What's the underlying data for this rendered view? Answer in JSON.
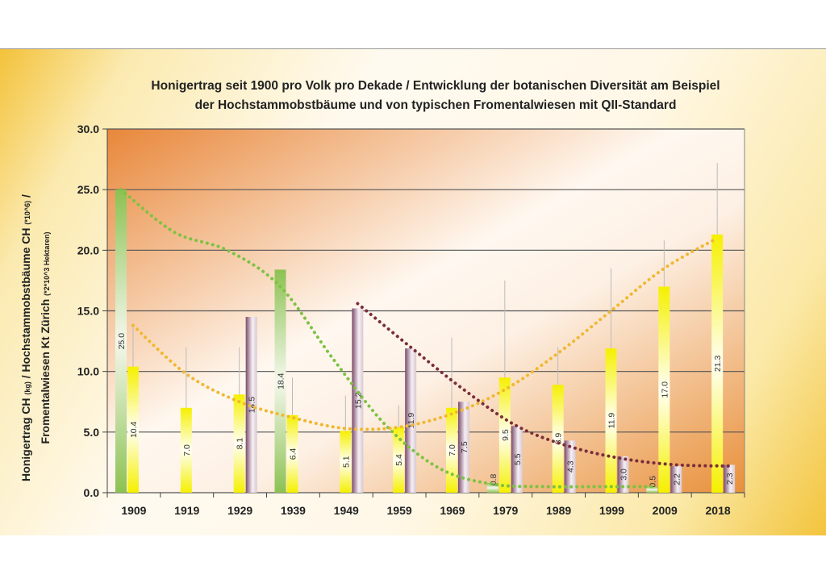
{
  "chart_data": {
    "type": "bar",
    "title_line1": "Honigertrag seit 1900 pro Volk pro Dekade / Entwicklung der botanischen Diversität am Beispiel",
    "title_line2": "der Hochstammobstbäume und von typischen Fromentalwiesen mit QII-Standard",
    "ylabel_line1": "Honigertrag CH",
    "ylabel_unit1": "(kg)",
    "ylabel_mid": "/ Hochstammobstbäume CH",
    "ylabel_unit2": "(*10^6)",
    "ylabel_end": "/",
    "ylabel_line2": "Fromentalwiesen Kt Zürich",
    "ylabel_unit3": "(*2*10^3 Hektaren)",
    "ylim": [
      0,
      30
    ],
    "yticks": [
      "0.0",
      "5.0",
      "10.0",
      "15.0",
      "20.0",
      "25.0",
      "30.0"
    ],
    "grid": true,
    "categories": [
      "1909",
      "1919",
      "1929",
      "1939",
      "1949",
      "1959",
      "1969",
      "1979",
      "1989",
      "1999",
      "2009",
      "2018"
    ],
    "series": [
      {
        "key": "green",
        "color": "#8cc152",
        "values": [
          25.0,
          null,
          null,
          18.4,
          null,
          null,
          null,
          0.8,
          null,
          null,
          0.5,
          null
        ],
        "trend": [
          25,
          21.5,
          20,
          17,
          11,
          5.5,
          2,
          0.7,
          0.5,
          0.5,
          0.5,
          null
        ]
      },
      {
        "key": "yellow",
        "color": "#f5f000",
        "values": [
          10.4,
          7.0,
          8.1,
          6.4,
          5.1,
          5.4,
          7.0,
          9.5,
          8.9,
          11.9,
          17.0,
          21.3
        ],
        "error_upper": [
          13.8,
          12.0,
          12.0,
          9.5,
          8.0,
          7.2,
          12.8,
          17.5,
          12.0,
          18.5,
          20.8,
          27.2
        ],
        "trend": [
          13.8,
          9.8,
          7.5,
          6.2,
          5.3,
          5.4,
          6.5,
          8.5,
          11.5,
          15,
          18.5,
          21
        ]
      },
      {
        "key": "purple",
        "color": "#7a4a6a",
        "values": [
          null,
          null,
          14.5,
          null,
          15.2,
          11.9,
          7.5,
          5.5,
          4.3,
          3.0,
          2.2,
          2.3
        ],
        "trend": [
          null,
          null,
          null,
          null,
          15.6,
          12,
          8.5,
          5.5,
          3.8,
          2.8,
          2.3,
          2.2
        ]
      }
    ],
    "trend_colors": {
      "green": "#7dc242",
      "yellow": "#f0b830",
      "purple": "#7a2e3a"
    }
  }
}
